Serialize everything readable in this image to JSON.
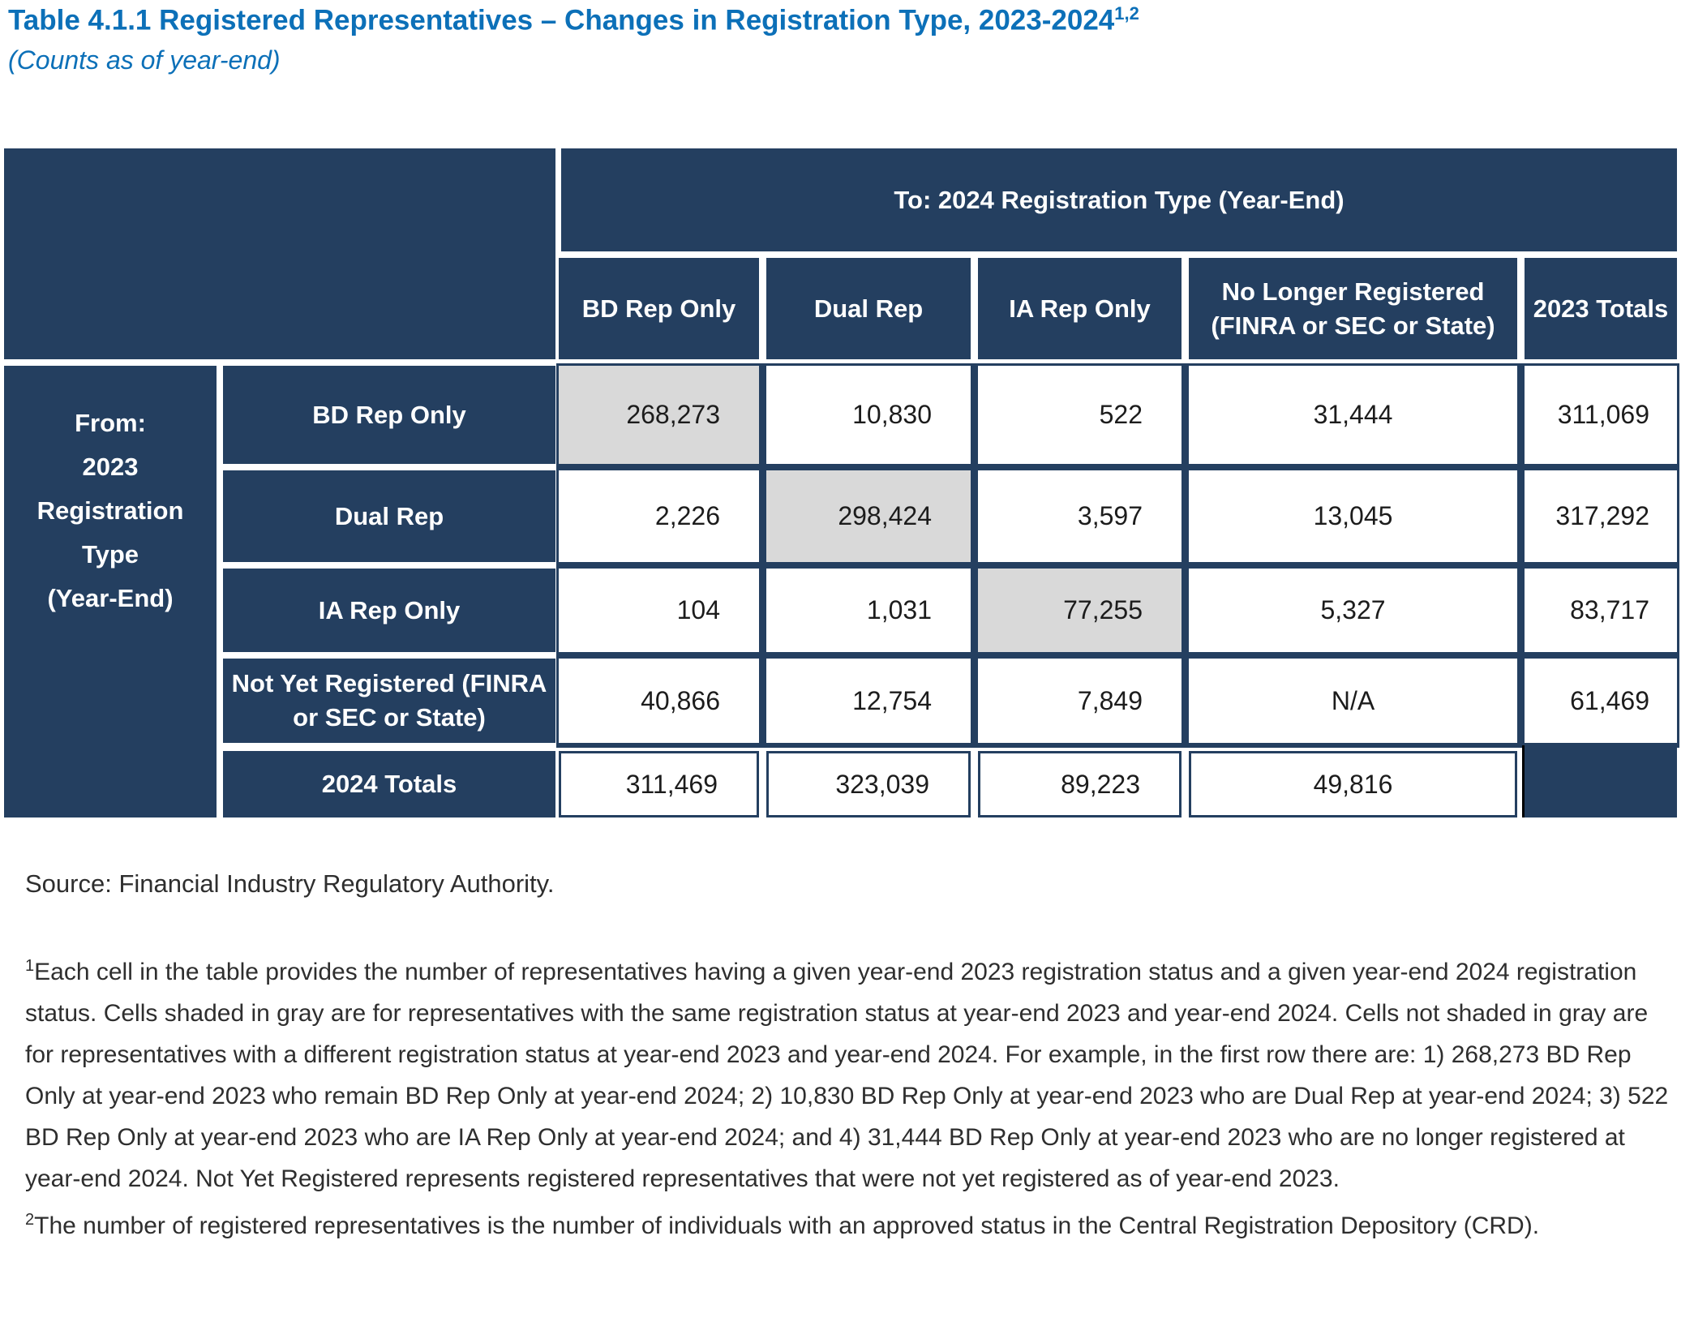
{
  "title": {
    "text": "Table 4.1.1 Registered Representatives – Changes in Registration Type, 2023-2024",
    "sup": "1,2",
    "subtitle": "(Counts as of year-end)"
  },
  "table": {
    "group_header": "To: 2024 Registration Type (Year-End)",
    "row_group_header": "From: 2023 Registration Type (Year-End)",
    "from_lines": [
      "From:",
      "2023",
      "Registration",
      "Type",
      "(Year-End)"
    ],
    "columns": [
      "BD Rep Only",
      "Dual Rep",
      "IA Rep Only",
      "No Longer Registered (FINRA or SEC or State)",
      "2023 Totals"
    ],
    "rows": [
      {
        "label": "BD Rep Only",
        "values": [
          "268,273",
          "10,830",
          "522",
          "31,444",
          "311,069"
        ],
        "diagonal_index": 0
      },
      {
        "label": "Dual Rep",
        "values": [
          "2,226",
          "298,424",
          "3,597",
          "13,045",
          "317,292"
        ],
        "diagonal_index": 1
      },
      {
        "label": "IA Rep Only",
        "values": [
          "104",
          "1,031",
          "77,255",
          "5,327",
          "83,717"
        ],
        "diagonal_index": 2
      },
      {
        "label": "Not Yet Registered (FINRA or SEC or State)",
        "values": [
          "40,866",
          "12,754",
          "7,849",
          "N/A",
          "61,469"
        ]
      },
      {
        "label": "2024 Totals",
        "values": [
          "311,469",
          "323,039",
          "89,223",
          "49,816",
          ""
        ]
      }
    ]
  },
  "source": "Source: Financial Industry Regulatory Authority.",
  "footnotes": [
    {
      "marker": "1",
      "text": "Each cell in the table provides the number of representatives having a given year-end 2023 registration status and a given year-end 2024 registration status. Cells shaded in gray are for representatives with the same registration status at year-end 2023 and year-end 2024. Cells not shaded in gray are for representatives with a different registration status at year-end 2023 and year-end 2024. For example, in the first row there are: 1) 268,273 BD Rep Only at year-end 2023 who remain BD Rep Only at year-end 2024; 2) 10,830 BD Rep Only at year-end 2023 who are Dual Rep at year-end 2024; 3) 522 BD Rep Only at year-end 2023 who are IA Rep Only at year-end 2024; and 4) 31,444 BD Rep Only at year-end 2023 who are no longer registered at year-end 2024. Not Yet Registered represents registered representatives that were not yet registered as of year-end 2023."
    },
    {
      "marker": "2",
      "text": "The number of registered representatives is the number of individuals with an approved status in the Central Registration Depository (CRD)."
    }
  ],
  "colors": {
    "header_navy": "#243F60",
    "diagonal_gray": "#D9D9D9",
    "title_blue": "#0C70B8",
    "body_text": "#2e2e2e"
  }
}
